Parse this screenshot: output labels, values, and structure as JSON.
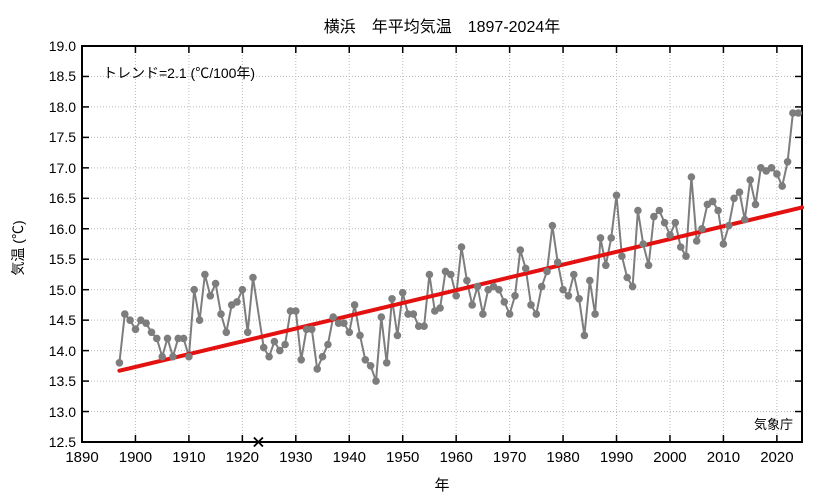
{
  "trend_annotation": "トレンド=2.1 (℃/100年)",
  "source_label": "気象庁",
  "colors": {
    "series": "#7d7d7d",
    "trend": "#e41111",
    "grid": "#bbbbbb",
    "frame": "#000000",
    "text": "#000000",
    "background": "#ffffff"
  },
  "chart_data": {
    "type": "line",
    "title": "横浜　年平均気温　1897-2024年",
    "xlabel": "年",
    "ylabel": "気温 (℃)",
    "xlim": [
      1890,
      2024.7
    ],
    "ylim": [
      12.5,
      19.0
    ],
    "x_ticks": [
      1890,
      1900,
      1910,
      1920,
      1930,
      1940,
      1950,
      1960,
      1970,
      1980,
      1990,
      2000,
      2010,
      2020
    ],
    "y_ticks": [
      12.5,
      13.0,
      13.5,
      14.0,
      14.5,
      15.0,
      15.5,
      16.0,
      16.5,
      17.0,
      17.5,
      18.0,
      18.5,
      19.0
    ],
    "grid": true,
    "legend_position": "none",
    "missing_years": [
      1923
    ],
    "years": [
      1897,
      1898,
      1899,
      1900,
      1901,
      1902,
      1903,
      1904,
      1905,
      1906,
      1907,
      1908,
      1909,
      1910,
      1911,
      1912,
      1913,
      1914,
      1915,
      1916,
      1917,
      1918,
      1919,
      1920,
      1921,
      1922,
      1923,
      1924,
      1925,
      1926,
      1927,
      1928,
      1929,
      1930,
      1931,
      1932,
      1933,
      1934,
      1935,
      1936,
      1937,
      1938,
      1939,
      1940,
      1941,
      1942,
      1943,
      1944,
      1945,
      1946,
      1947,
      1948,
      1949,
      1950,
      1951,
      1952,
      1953,
      1954,
      1955,
      1956,
      1957,
      1958,
      1959,
      1960,
      1961,
      1962,
      1963,
      1964,
      1965,
      1966,
      1967,
      1968,
      1969,
      1970,
      1971,
      1972,
      1973,
      1974,
      1975,
      1976,
      1977,
      1978,
      1979,
      1980,
      1981,
      1982,
      1983,
      1984,
      1985,
      1986,
      1987,
      1988,
      1989,
      1990,
      1991,
      1992,
      1993,
      1994,
      1995,
      1996,
      1997,
      1998,
      1999,
      2000,
      2001,
      2002,
      2003,
      2004,
      2005,
      2006,
      2007,
      2008,
      2009,
      2010,
      2011,
      2012,
      2013,
      2014,
      2015,
      2016,
      2017,
      2018,
      2019,
      2020,
      2021,
      2022,
      2023,
      2024
    ],
    "values": [
      13.8,
      14.6,
      14.5,
      14.35,
      14.5,
      14.45,
      14.3,
      14.2,
      13.9,
      14.2,
      13.9,
      14.2,
      14.2,
      13.9,
      15.0,
      14.5,
      15.25,
      14.9,
      15.1,
      14.6,
      14.3,
      14.75,
      14.8,
      15.0,
      14.3,
      15.2,
      null,
      14.05,
      13.9,
      14.15,
      14.0,
      14.1,
      14.65,
      14.65,
      13.85,
      14.35,
      14.35,
      13.7,
      13.9,
      14.1,
      14.55,
      14.45,
      14.45,
      14.3,
      14.75,
      14.25,
      13.85,
      13.75,
      13.5,
      14.55,
      13.8,
      14.85,
      14.25,
      14.95,
      14.6,
      14.6,
      14.4,
      14.4,
      15.25,
      14.65,
      14.7,
      15.3,
      15.25,
      14.9,
      15.7,
      15.15,
      14.75,
      15.05,
      14.6,
      15.0,
      15.05,
      15.0,
      14.8,
      14.6,
      14.9,
      15.65,
      15.35,
      14.75,
      14.6,
      15.05,
      15.3,
      16.05,
      15.45,
      15.0,
      14.9,
      15.25,
      14.85,
      14.25,
      15.15,
      14.6,
      15.85,
      15.4,
      15.85,
      16.55,
      15.55,
      15.2,
      15.05,
      16.3,
      15.75,
      15.4,
      16.2,
      16.3,
      16.1,
      15.9,
      16.1,
      15.7,
      15.55,
      16.85,
      15.8,
      16.0,
      16.4,
      16.45,
      16.3,
      15.75,
      16.05,
      16.5,
      16.6,
      16.15,
      16.8,
      16.4,
      17.0,
      16.95,
      17.0,
      16.9,
      16.7,
      17.1,
      17.9,
      17.9
    ],
    "trend": {
      "per_100yr": 2.1,
      "start_year": 1897,
      "start_value": 13.67,
      "end_year": 2024.7,
      "end_value": 16.35
    }
  }
}
